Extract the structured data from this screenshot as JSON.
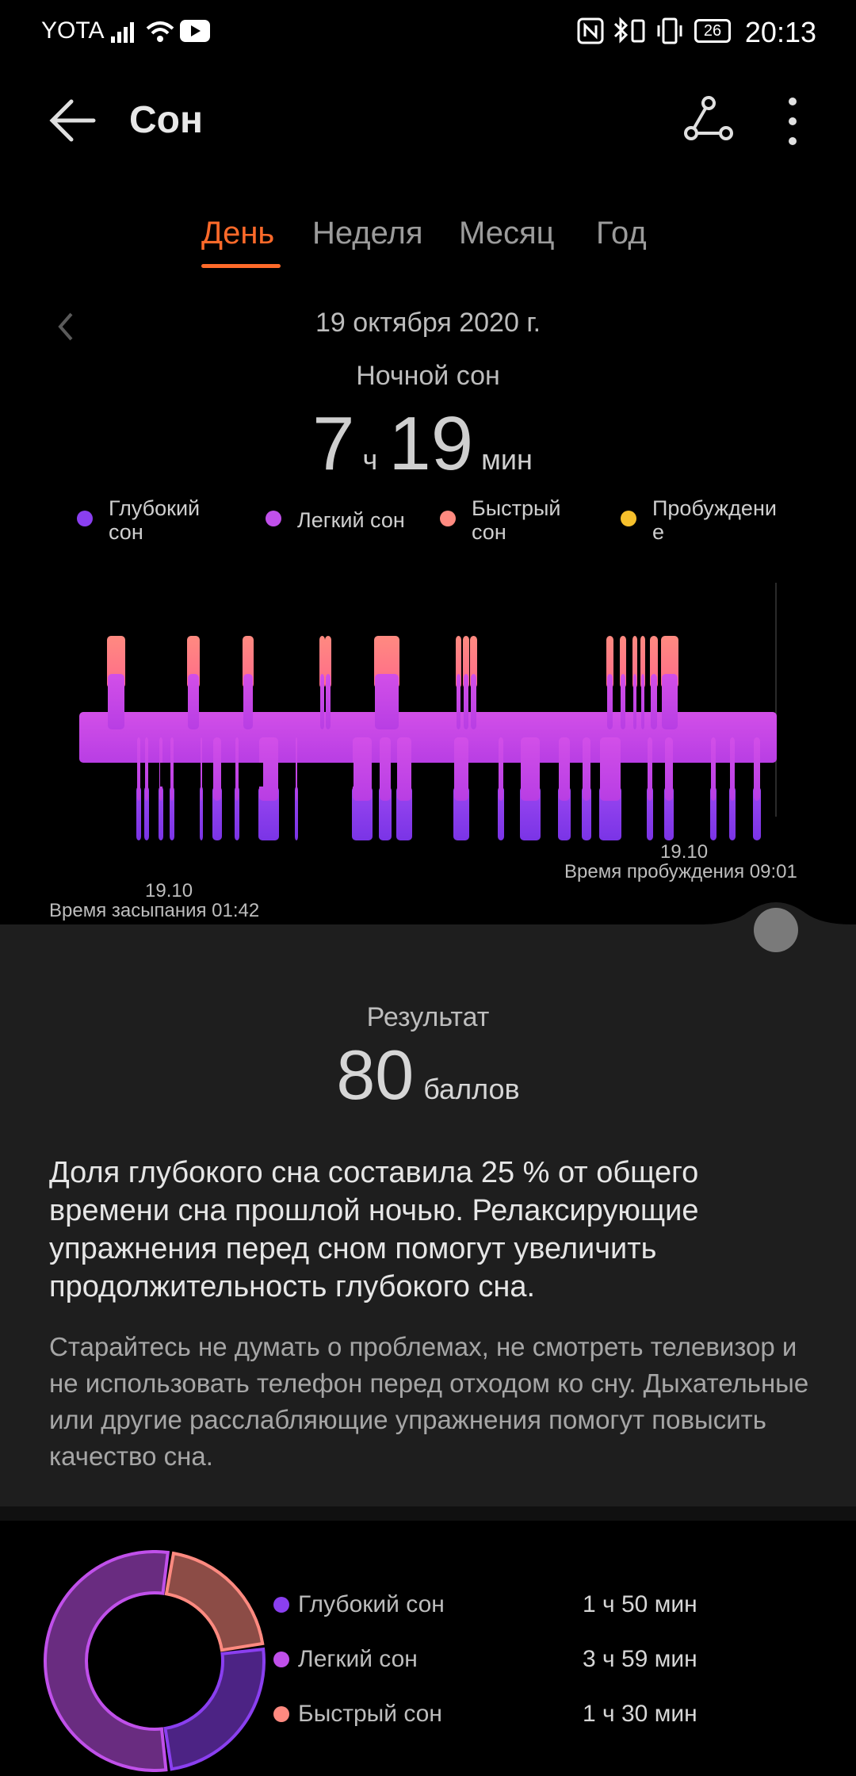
{
  "status_bar": {
    "carrier": "YOTA",
    "battery": "26",
    "time": "20:13"
  },
  "app_bar": {
    "title": "Сон",
    "back_icon": "arrow-left-icon",
    "share_icon": "share-nodes-icon",
    "more_icon": "more-vertical-icon"
  },
  "tabs": [
    {
      "label": "День",
      "active": true
    },
    {
      "label": "Неделя",
      "active": false
    },
    {
      "label": "Месяц",
      "active": false
    },
    {
      "label": "Год",
      "active": false
    }
  ],
  "date": "19 октября 2020 г.",
  "period_label": "Ночной сон",
  "duration": {
    "hours": "7",
    "hours_unit": "ч",
    "minutes": "19",
    "minutes_unit": "мин"
  },
  "legend": [
    {
      "label": "Глубокий\nсон",
      "color": "#8a3ff0"
    },
    {
      "label": "Легкий сон",
      "color": "#c050ea"
    },
    {
      "label": "Быстрый\nсон",
      "color": "#ff8a80"
    },
    {
      "label": "Пробуждени\nе",
      "color": "#f6c02c"
    }
  ],
  "chart": {
    "sleep_date": "19.10",
    "sleep_time": "Время засыпания 01:42",
    "wake_date": "19.10",
    "wake_time": "Время пробуждения 09:01",
    "colors": {
      "deep": "#8a3ff0",
      "light": "#c050ea",
      "rem": "#ff8a80"
    }
  },
  "result": {
    "label": "Результат",
    "score": "80",
    "unit": "баллов",
    "main_text": "Доля глубокого сна составила 25 % от общего времени сна прошлой ночью. Релаксирующие упражнения перед сном помогут увеличить продолжительность глубокого сна.",
    "sub_text": "Старайтесь не думать о проблемах, не смотреть телевизор и не использовать телефон перед отходом ко сну. Дыхательные или другие расслабляющие упражнения помогут повысить качество сна."
  },
  "summary": [
    {
      "label": "Глубокий сон",
      "value": "1 ч 50 мин",
      "color": "#8a3ff0"
    },
    {
      "label": "Легкий сон",
      "value": "3 ч 59 мин",
      "color": "#c050ea"
    },
    {
      "label": "Быстрый сон",
      "value": "1 ч 30 мин",
      "color": "#ff8a80"
    }
  ]
}
